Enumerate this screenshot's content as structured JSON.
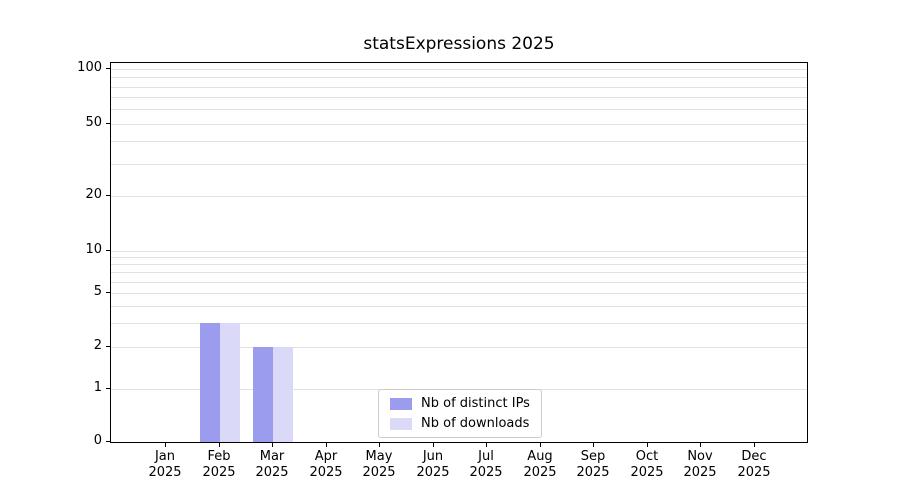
{
  "chart_data": {
    "type": "bar",
    "title": "statsExpressions 2025",
    "categories": [
      "Jan",
      "Feb",
      "Mar",
      "Apr",
      "May",
      "Jun",
      "Jul",
      "Aug",
      "Sep",
      "Oct",
      "Nov",
      "Dec"
    ],
    "x_year_label": "2025",
    "series": [
      {
        "name": "Nb of distinct IPs",
        "color": "#9c9cee",
        "values": [
          0,
          3,
          2,
          0,
          0,
          0,
          0,
          0,
          0,
          0,
          0,
          0
        ]
      },
      {
        "name": "Nb of downloads",
        "color": "#dadaf8",
        "values": [
          0,
          3,
          2,
          0,
          0,
          0,
          0,
          0,
          0,
          0,
          0,
          0
        ]
      }
    ],
    "yticks": [
      0,
      1,
      2,
      5,
      10,
      20,
      50,
      100
    ],
    "minor_gridlines": [
      1,
      2,
      3,
      4,
      5,
      6,
      7,
      8,
      9,
      10,
      20,
      30,
      40,
      50,
      60,
      70,
      80,
      90,
      100
    ],
    "scale": "symlog",
    "ylim": [
      0,
      100
    ],
    "grid": "horizontal",
    "gridline_color": "#e2e2e2",
    "legend_position": "lower-center-inside"
  }
}
